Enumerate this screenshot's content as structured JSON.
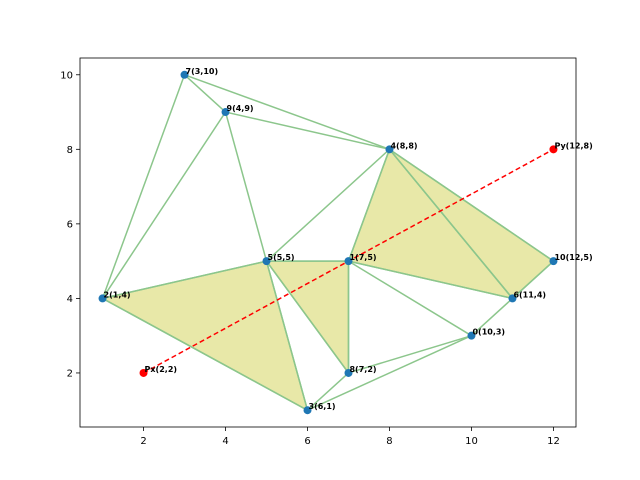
{
  "chart_data": {
    "type": "scatter",
    "title": "",
    "xlabel": "",
    "ylabel": "",
    "xlim": [
      0.45,
      12.55
    ],
    "ylim": [
      0.55,
      10.45
    ],
    "x_ticks": [
      2,
      4,
      6,
      8,
      10,
      12
    ],
    "y_ticks": [
      2,
      4,
      6,
      8,
      10
    ],
    "grid": false,
    "colors": {
      "point": "#1f77b4",
      "edge": "#8cc68c",
      "fill": "#e8e8a8",
      "fill_edge": "#8cc68c",
      "line": "#ff0000"
    },
    "points": [
      {
        "id": 0,
        "x": 10,
        "y": 3,
        "label": "0(10,3)"
      },
      {
        "id": 1,
        "x": 7,
        "y": 5,
        "label": "1(7,5)"
      },
      {
        "id": 2,
        "x": 1,
        "y": 4,
        "label": "2(1,4)"
      },
      {
        "id": 3,
        "x": 6,
        "y": 1,
        "label": "3(6,1)"
      },
      {
        "id": 4,
        "x": 8,
        "y": 8,
        "label": "4(8,8)"
      },
      {
        "id": 5,
        "x": 5,
        "y": 5,
        "label": "5(5,5)"
      },
      {
        "id": 6,
        "x": 11,
        "y": 4,
        "label": "6(11,4)"
      },
      {
        "id": 7,
        "x": 3,
        "y": 10,
        "label": "7(3,10)"
      },
      {
        "id": 8,
        "x": 7,
        "y": 2,
        "label": "8(7,2)"
      },
      {
        "id": 9,
        "x": 4,
        "y": 9,
        "label": "9(4,9)"
      },
      {
        "id": 10,
        "x": 12,
        "y": 5,
        "label": "10(12,5)"
      }
    ],
    "edges": [
      [
        7,
        9
      ],
      [
        7,
        4
      ],
      [
        7,
        2
      ],
      [
        9,
        4
      ],
      [
        9,
        2
      ],
      [
        9,
        5
      ],
      [
        4,
        5
      ],
      [
        4,
        1
      ],
      [
        4,
        6
      ],
      [
        4,
        10
      ],
      [
        10,
        6
      ],
      [
        1,
        6
      ],
      [
        1,
        0
      ],
      [
        6,
        0
      ],
      [
        0,
        8
      ],
      [
        0,
        3
      ],
      [
        5,
        1
      ],
      [
        5,
        8
      ],
      [
        5,
        3
      ],
      [
        1,
        8
      ],
      [
        8,
        3
      ],
      [
        2,
        5
      ],
      [
        2,
        3
      ]
    ],
    "highlighted_triangles": [
      [
        2,
        5,
        3
      ],
      [
        5,
        1,
        8
      ],
      [
        1,
        4,
        6
      ],
      [
        4,
        10,
        6
      ]
    ],
    "segment": {
      "start": {
        "x": 2,
        "y": 2,
        "label": "Px(2,2)"
      },
      "end": {
        "x": 12,
        "y": 8,
        "label": "Py(12,8)"
      },
      "style": "dashed"
    }
  }
}
